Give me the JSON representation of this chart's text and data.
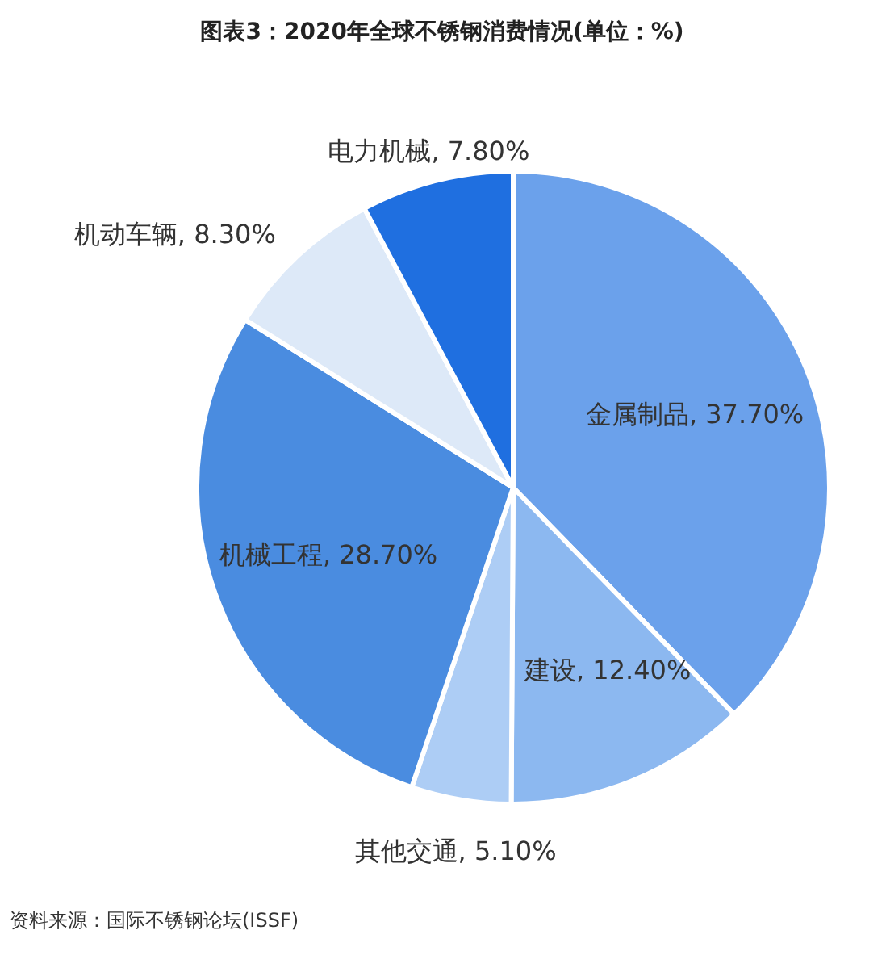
{
  "chart_data": {
    "type": "pie",
    "title": "图表3：2020年全球不锈钢消费情况(单位：%)",
    "categories": [
      "金属制品",
      "建设",
      "其他交通",
      "机械工程",
      "机动车辆",
      "电力机械"
    ],
    "values": [
      37.7,
      12.4,
      5.1,
      28.7,
      8.3,
      7.8
    ],
    "value_labels": [
      "37.70%",
      "12.40%",
      "5.10%",
      "28.70%",
      "8.30%",
      "7.80%"
    ],
    "colors": [
      "#6ba1eb",
      "#8cb8f0",
      "#adcdf5",
      "#4a8ce0",
      "#dde9f8",
      "#1f6fe0"
    ],
    "annotations": [
      "资料来源：国际不锈钢论坛(ISSF)"
    ]
  }
}
